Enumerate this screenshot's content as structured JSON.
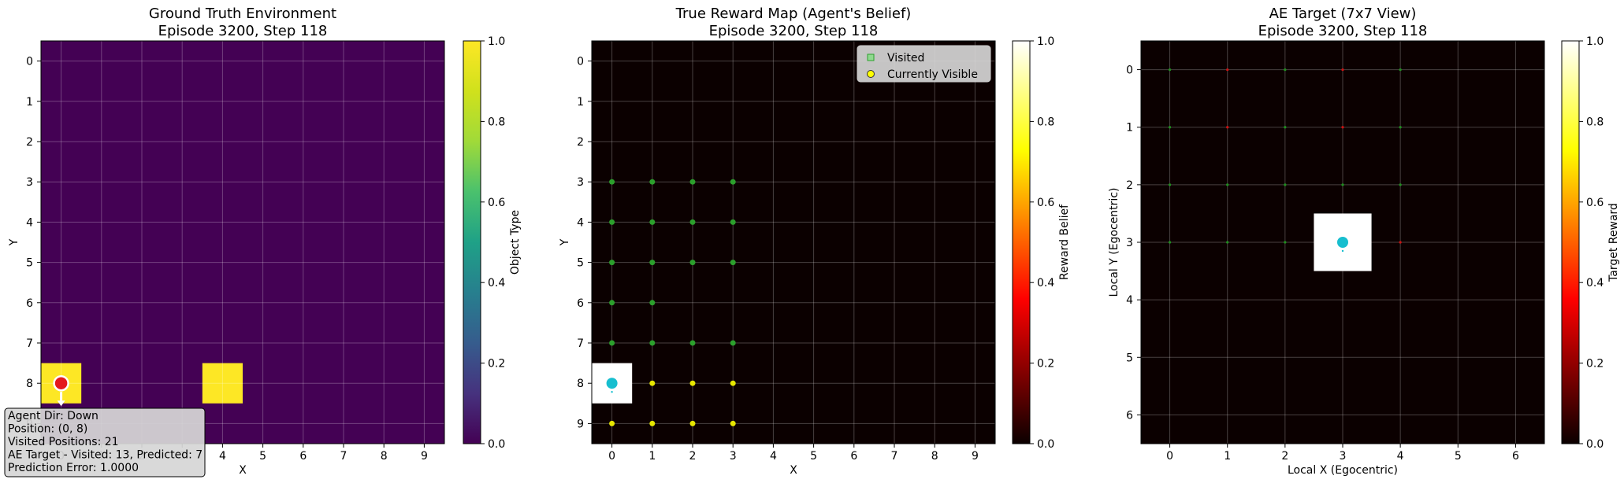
{
  "chart_data": [
    {
      "type": "heatmap",
      "title_line1": "Ground Truth Environment",
      "title_line2": "Episode 3200, Step 118",
      "xlabel": "X",
      "ylabel": "Y",
      "xticks": [
        "0",
        "1",
        "2",
        "3",
        "4",
        "5",
        "6",
        "7",
        "8",
        "9"
      ],
      "yticks": [
        "0",
        "1",
        "2",
        "3",
        "4",
        "5",
        "6",
        "7",
        "8",
        "9"
      ],
      "xlim": [
        -0.5,
        9.5
      ],
      "ylim": [
        -0.5,
        9.5
      ],
      "grid": true,
      "colormap": "viridis",
      "colorbar": {
        "label": "Object Type",
        "ticks": [
          "0.0",
          "0.2",
          "0.4",
          "0.6",
          "0.8",
          "1.0"
        ],
        "range": [
          0,
          1
        ]
      },
      "background_value": 0.0,
      "cells": [
        {
          "x": 0,
          "y": 8,
          "value": 1.0
        },
        {
          "x": 4,
          "y": 8,
          "value": 1.0
        }
      ],
      "agent": {
        "x": 0,
        "y": 8,
        "color": "#e41a1c",
        "direction": "down"
      },
      "info_box": {
        "lines": [
          "Agent Dir: Down",
          "Position: (0, 8)",
          "Visited Positions: 21",
          "AE Target - Visited: 13, Predicted: 7",
          "Prediction Error: 1.0000"
        ]
      }
    },
    {
      "type": "heatmap",
      "title_line1": "True Reward Map (Agent's Belief)",
      "title_line2": "Episode 3200, Step 118",
      "xlabel": "X",
      "ylabel": "Y",
      "xticks": [
        "0",
        "1",
        "2",
        "3",
        "4",
        "5",
        "6",
        "7",
        "8",
        "9"
      ],
      "yticks": [
        "0",
        "1",
        "2",
        "3",
        "4",
        "5",
        "6",
        "7",
        "8",
        "9"
      ],
      "xlim": [
        -0.5,
        9.5
      ],
      "ylim": [
        -0.5,
        9.5
      ],
      "grid": true,
      "colormap": "hot",
      "colorbar": {
        "label": "Reward Belief",
        "ticks": [
          "0.0",
          "0.2",
          "0.4",
          "0.6",
          "0.8",
          "1.0"
        ],
        "range": [
          0,
          1
        ]
      },
      "background_value": 0.0,
      "cells": [
        {
          "x": 0,
          "y": 8,
          "value": 1.0
        }
      ],
      "visited_markers": [
        [
          0,
          3
        ],
        [
          1,
          3
        ],
        [
          2,
          3
        ],
        [
          3,
          3
        ],
        [
          0,
          4
        ],
        [
          1,
          4
        ],
        [
          2,
          4
        ],
        [
          3,
          4
        ],
        [
          0,
          5
        ],
        [
          1,
          5
        ],
        [
          2,
          5
        ],
        [
          3,
          5
        ],
        [
          0,
          6
        ],
        [
          1,
          6
        ],
        [
          0,
          7
        ],
        [
          1,
          7
        ],
        [
          2,
          7
        ],
        [
          3,
          7
        ]
      ],
      "visible_markers": [
        [
          1,
          8
        ],
        [
          2,
          8
        ],
        [
          3,
          8
        ],
        [
          0,
          9
        ],
        [
          1,
          9
        ],
        [
          2,
          9
        ],
        [
          3,
          9
        ]
      ],
      "agent": {
        "x": 0,
        "y": 8,
        "color": "#17becf"
      },
      "legend": {
        "position": "upper right",
        "entries": [
          {
            "label": "Visited",
            "marker": "square",
            "color": "#2ca02c"
          },
          {
            "label": "Currently Visible",
            "marker": "circle",
            "color": "#ffff00"
          }
        ]
      },
      "colors": {
        "visited": "#2ca02c",
        "visible": "#e6e600"
      }
    },
    {
      "type": "heatmap",
      "title_line1": "AE Target (7x7 View)",
      "title_line2": "Episode 3200, Step 118",
      "xlabel": "Local X (Egocentric)",
      "ylabel": "Local Y (Egocentric)",
      "xticks": [
        "0",
        "1",
        "2",
        "3",
        "4",
        "5",
        "6"
      ],
      "yticks": [
        "0",
        "1",
        "2",
        "3",
        "4",
        "5",
        "6"
      ],
      "xlim": [
        -0.5,
        6.5
      ],
      "ylim": [
        -0.5,
        6.5
      ],
      "grid": true,
      "colormap": "hot",
      "colorbar": {
        "label": "Target Reward",
        "ticks": [
          "0.0",
          "0.2",
          "0.4",
          "0.6",
          "0.8",
          "1.0"
        ],
        "range": [
          0,
          1
        ]
      },
      "background_value": 0.0,
      "cells": [
        {
          "x": 3,
          "y": 3,
          "value": 1.0
        }
      ],
      "green_markers": [
        [
          0,
          0
        ],
        [
          2,
          0
        ],
        [
          4,
          0
        ],
        [
          0,
          1
        ],
        [
          2,
          1
        ],
        [
          4,
          1
        ],
        [
          0,
          2
        ],
        [
          1,
          2
        ],
        [
          2,
          2
        ],
        [
          3,
          2
        ],
        [
          4,
          2
        ],
        [
          0,
          3
        ],
        [
          1,
          3
        ],
        [
          2,
          3
        ]
      ],
      "red_markers": [
        [
          1,
          0
        ],
        [
          3,
          0
        ],
        [
          1,
          1
        ],
        [
          3,
          1
        ],
        [
          4,
          3
        ]
      ],
      "agent": {
        "x": 3,
        "y": 3,
        "color": "#17becf"
      }
    }
  ]
}
